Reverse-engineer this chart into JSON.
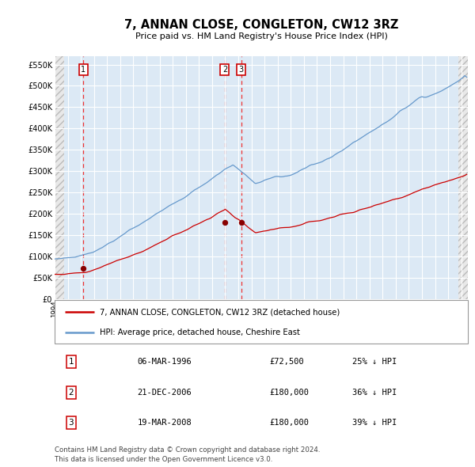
{
  "title": "7, ANNAN CLOSE, CONGLETON, CW12 3RZ",
  "subtitle": "Price paid vs. HM Land Registry's House Price Index (HPI)",
  "bg_color": "#dce9f5",
  "hatch_color": "#b0c4de",
  "red_line_color": "#cc0000",
  "blue_line_color": "#6699cc",
  "dashed_line_color": "#ee3333",
  "marker_color": "#880000",
  "ylim": [
    0,
    570000
  ],
  "yticks": [
    0,
    50000,
    100000,
    150000,
    200000,
    250000,
    300000,
    350000,
    400000,
    450000,
    500000,
    550000
  ],
  "ytick_labels": [
    "£0",
    "£50K",
    "£100K",
    "£150K",
    "£200K",
    "£250K",
    "£300K",
    "£350K",
    "£400K",
    "£450K",
    "£500K",
    "£550K"
  ],
  "xstart": 1994.0,
  "xend": 2025.5,
  "purchases": [
    {
      "year": 1996.18,
      "price": 72500,
      "label": "1"
    },
    {
      "year": 2006.97,
      "price": 180000,
      "label": "2"
    },
    {
      "year": 2008.22,
      "price": 180000,
      "label": "3"
    }
  ],
  "legend_red": "7, ANNAN CLOSE, CONGLETON, CW12 3RZ (detached house)",
  "legend_blue": "HPI: Average price, detached house, Cheshire East",
  "table_rows": [
    {
      "num": "1",
      "date": "06-MAR-1996",
      "price": "£72,500",
      "pct": "25% ↓ HPI"
    },
    {
      "num": "2",
      "date": "21-DEC-2006",
      "price": "£180,000",
      "pct": "36% ↓ HPI"
    },
    {
      "num": "3",
      "date": "19-MAR-2008",
      "price": "£180,000",
      "pct": "39% ↓ HPI"
    }
  ],
  "footer": "Contains HM Land Registry data © Crown copyright and database right 2024.\nThis data is licensed under the Open Government Licence v3.0."
}
